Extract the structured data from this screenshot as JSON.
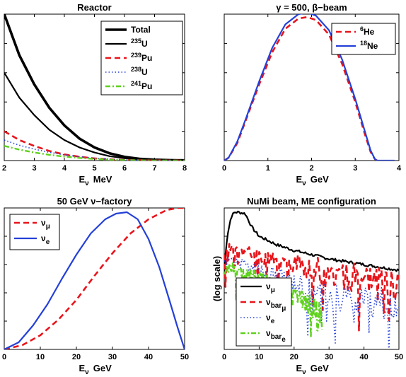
{
  "chart_data": [
    {
      "type": "line",
      "title": "Reactor",
      "xlabel_main": "E",
      "xlabel_sub": "ν",
      "xlabel_unit": "MeV",
      "xlim": [
        2,
        8
      ],
      "x_ticks": [
        "2",
        "3",
        "4",
        "5",
        "6",
        "7",
        "8"
      ],
      "ylim": [
        0,
        1
      ],
      "legend_position": "top-right",
      "series": [
        {
          "name": "Total",
          "color": "#000000",
          "style": "solid-thick",
          "x": [
            2,
            2.5,
            3,
            3.5,
            4,
            4.5,
            5,
            5.5,
            6,
            6.5,
            7,
            7.5,
            8
          ],
          "y": [
            1.0,
            0.72,
            0.52,
            0.36,
            0.24,
            0.15,
            0.09,
            0.05,
            0.025,
            0.012,
            0.006,
            0.003,
            0.0015
          ]
        },
        {
          "name": "235",
          "name_sup": "235",
          "name_base": "U",
          "color": "#000000",
          "style": "solid",
          "x": [
            2,
            2.5,
            3,
            3.5,
            4,
            4.5,
            5,
            5.5,
            6,
            6.5,
            7,
            7.5,
            8
          ],
          "y": [
            0.6,
            0.43,
            0.31,
            0.21,
            0.14,
            0.09,
            0.055,
            0.03,
            0.016,
            0.008,
            0.004,
            0.002,
            0.001
          ]
        },
        {
          "name": "239Pu",
          "name_sup": "239",
          "name_base": "Pu",
          "color": "#e8141b",
          "style": "dashed",
          "x": [
            2,
            2.5,
            3,
            3.5,
            4,
            4.5,
            5,
            5.5,
            6,
            6.5,
            7,
            7.5,
            8
          ],
          "y": [
            0.2,
            0.14,
            0.1,
            0.065,
            0.042,
            0.026,
            0.015,
            0.008,
            0.004,
            0.002,
            0.001,
            0.0005,
            0.0002
          ]
        },
        {
          "name": "238U",
          "name_sup": "238",
          "name_base": "U",
          "color": "#2440d8",
          "style": "dotted",
          "x": [
            2,
            2.5,
            3,
            3.5,
            4,
            4.5,
            5,
            5.5,
            6,
            6.5,
            7,
            7.5,
            8
          ],
          "y": [
            0.14,
            0.105,
            0.078,
            0.056,
            0.039,
            0.026,
            0.016,
            0.009,
            0.005,
            0.0025,
            0.0012,
            0.0006,
            0.0003
          ]
        },
        {
          "name": "241Pu",
          "name_sup": "241",
          "name_base": "Pu",
          "color": "#5fd11d",
          "style": "dashdot",
          "x": [
            2,
            2.5,
            3,
            3.5,
            4,
            4.5,
            5,
            5.5,
            6,
            6.5,
            7,
            7.5,
            8
          ],
          "y": [
            0.1,
            0.075,
            0.055,
            0.039,
            0.027,
            0.018,
            0.011,
            0.006,
            0.003,
            0.0015,
            0.0007,
            0.0003,
            0.0001
          ]
        }
      ]
    },
    {
      "type": "line",
      "title": "γ = 500, β−beam",
      "xlabel_main": "E",
      "xlabel_sub": "ν",
      "xlabel_unit": "GeV",
      "xlim": [
        0,
        4
      ],
      "x_ticks": [
        "0",
        "1",
        "2",
        "3",
        "4"
      ],
      "ylim": [
        0,
        1
      ],
      "legend_position": "top-right",
      "series": [
        {
          "name": "6He",
          "name_sup": "6",
          "name_base": "He",
          "color": "#e8141b",
          "style": "dashed",
          "x": [
            0,
            0.1,
            0.3,
            0.5,
            0.8,
            1.1,
            1.4,
            1.7,
            1.9,
            2.1,
            2.4,
            2.7,
            3.0,
            3.2,
            3.35,
            3.45,
            3.5
          ],
          "y": [
            0,
            0.02,
            0.12,
            0.28,
            0.52,
            0.74,
            0.9,
            0.97,
            0.98,
            0.96,
            0.86,
            0.66,
            0.4,
            0.2,
            0.06,
            0.01,
            0
          ]
        },
        {
          "name": "18Ne",
          "name_sup": "18",
          "name_base": "Ne",
          "color": "#2440d8",
          "style": "solid",
          "x": [
            0,
            0.1,
            0.3,
            0.5,
            0.8,
            1.1,
            1.4,
            1.7,
            1.9,
            2.1,
            2.4,
            2.7,
            3.0,
            3.2,
            3.35,
            3.45,
            3.5,
            3.7,
            3.9
          ],
          "y": [
            0,
            0.02,
            0.13,
            0.29,
            0.54,
            0.77,
            0.93,
            1.0,
            1.01,
            0.99,
            0.89,
            0.69,
            0.42,
            0.22,
            0.07,
            0.01,
            0,
            0,
            0
          ]
        }
      ]
    },
    {
      "type": "line",
      "title": "50 GeV ν−factory",
      "xlabel_main": "E",
      "xlabel_sub": "ν",
      "xlabel_unit": "GeV",
      "xlim": [
        0,
        50
      ],
      "x_ticks": [
        "0",
        "10",
        "20",
        "30",
        "40",
        "50"
      ],
      "ylim": [
        0,
        1
      ],
      "legend_position": "top-left",
      "series": [
        {
          "name": "νμ",
          "name_base": "ν",
          "name_sub": "μ",
          "color": "#e8141b",
          "style": "dashed",
          "x": [
            0,
            5,
            10,
            15,
            20,
            25,
            30,
            35,
            40,
            45,
            48,
            50
          ],
          "y": [
            0,
            0.03,
            0.1,
            0.21,
            0.35,
            0.52,
            0.68,
            0.82,
            0.92,
            0.985,
            1.0,
            1.0
          ]
        },
        {
          "name": "νe",
          "name_base": "ν",
          "name_sub": "e",
          "color": "#2440d8",
          "style": "solid",
          "x": [
            0,
            4,
            8,
            12,
            16,
            20,
            24,
            28,
            31,
            34,
            37,
            40,
            43,
            46,
            48,
            50
          ],
          "y": [
            0,
            0.05,
            0.17,
            0.32,
            0.5,
            0.67,
            0.82,
            0.92,
            0.96,
            0.97,
            0.92,
            0.78,
            0.58,
            0.33,
            0.16,
            0
          ]
        }
      ]
    },
    {
      "type": "line",
      "title": "NuMi beam, ME configuration",
      "xlabel_main": "E",
      "xlabel_sub": "ν",
      "xlabel_unit": "GeV",
      "ylabel": "(log scale)",
      "xlim": [
        0,
        50
      ],
      "x_ticks": [
        "0",
        "10",
        "20",
        "30",
        "40",
        "50"
      ],
      "ylim": [
        0,
        1
      ],
      "yscale": "log",
      "legend_position": "bottom-left",
      "series": [
        {
          "name": "νμ",
          "name_base": "ν",
          "name_sub": "μ",
          "color": "#000000",
          "style": "solid",
          "x": [
            0,
            0.5,
            1,
            2,
            3,
            4,
            6,
            8,
            10,
            15,
            20,
            25,
            30,
            35,
            40,
            45,
            50
          ],
          "y": [
            0.55,
            0.72,
            0.82,
            0.94,
            0.97,
            0.97,
            0.96,
            0.86,
            0.8,
            0.74,
            0.7,
            0.67,
            0.64,
            0.62,
            0.6,
            0.58,
            0.56
          ]
        },
        {
          "name": "νbar μ",
          "name_base": "ν",
          "name_sub": "bar",
          "name_sub2": "μ",
          "color": "#e8141b",
          "style": "dashed",
          "x": [
            0,
            2,
            5,
            10,
            15,
            20,
            25,
            30,
            35,
            40,
            45,
            50
          ],
          "y": [
            0.7,
            0.73,
            0.7,
            0.66,
            0.62,
            0.6,
            0.58,
            0.55,
            0.52,
            0.5,
            0.48,
            0.46
          ]
        },
        {
          "name": "νe",
          "name_base": "ν",
          "name_sub": "e",
          "color": "#2440d8",
          "style": "dotted",
          "x": [
            0,
            2,
            5,
            10,
            15,
            20,
            25,
            30,
            35,
            40,
            45,
            50
          ],
          "y": [
            0.62,
            0.64,
            0.6,
            0.56,
            0.52,
            0.48,
            0.44,
            0.4,
            0.36,
            0.34,
            0.32,
            0.3
          ]
        },
        {
          "name": "νbar e",
          "name_base": "ν",
          "name_sub": "bar",
          "name_sub2": "e",
          "color": "#5fd11d",
          "style": "dashdot",
          "x": [
            0,
            2,
            5,
            10,
            15,
            20,
            25,
            28
          ],
          "y": [
            0.56,
            0.58,
            0.54,
            0.5,
            0.45,
            0.38,
            0.3,
            0.26
          ]
        }
      ]
    }
  ]
}
